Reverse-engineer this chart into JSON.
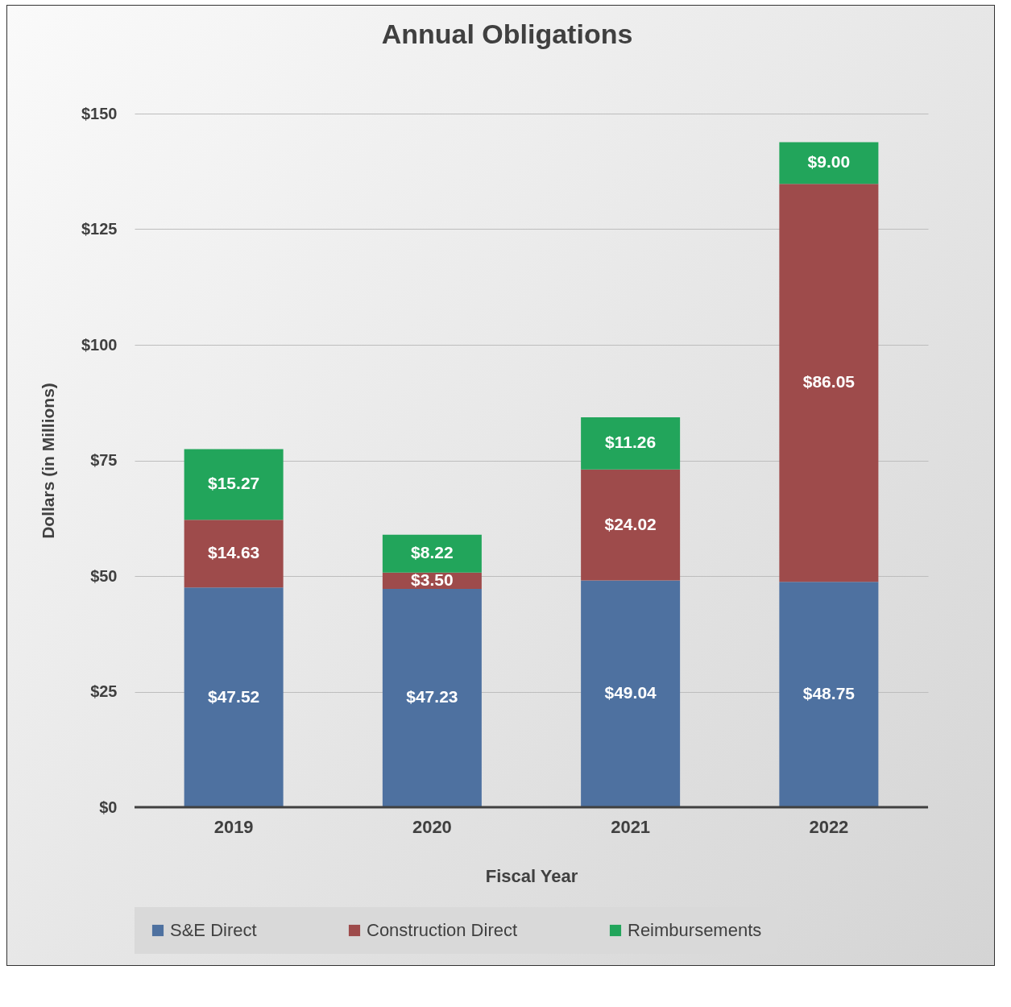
{
  "chart_data": {
    "type": "bar",
    "title": "Annual Obligations",
    "xlabel": "Fiscal Year",
    "ylabel": "Dollars (in Millions)",
    "categories": [
      "2019",
      "2020",
      "2021",
      "2022"
    ],
    "series": [
      {
        "name": "S&E Direct",
        "color": "#4e71a0",
        "values": [
          47.52,
          47.23,
          49.04,
          48.75
        ],
        "value_labels": [
          "$47.52",
          "$47.23",
          "$49.04",
          "$48.75"
        ]
      },
      {
        "name": "Construction Direct",
        "color": "#9e4b4b",
        "values": [
          14.63,
          3.5,
          24.02,
          86.05
        ],
        "value_labels": [
          "$14.63",
          "$3.50",
          "$24.02",
          "$86.05"
        ]
      },
      {
        "name": "Reimbursements",
        "color": "#22a55b",
        "values": [
          15.27,
          8.22,
          11.26,
          9.0
        ],
        "value_labels": [
          "$15.27",
          "$8.22",
          "$11.26",
          "$9.00"
        ]
      }
    ],
    "stacked": true,
    "ylim": [
      0,
      150
    ],
    "yticks": [
      {
        "value": 0,
        "label": "$0"
      },
      {
        "value": 25,
        "label": "$25"
      },
      {
        "value": 50,
        "label": "$50"
      },
      {
        "value": 75,
        "label": "$75"
      },
      {
        "value": 100,
        "label": "$100"
      },
      {
        "value": 125,
        "label": "$125"
      },
      {
        "value": 150,
        "label": "$150"
      }
    ],
    "grid": "y",
    "legend": "bottom"
  }
}
